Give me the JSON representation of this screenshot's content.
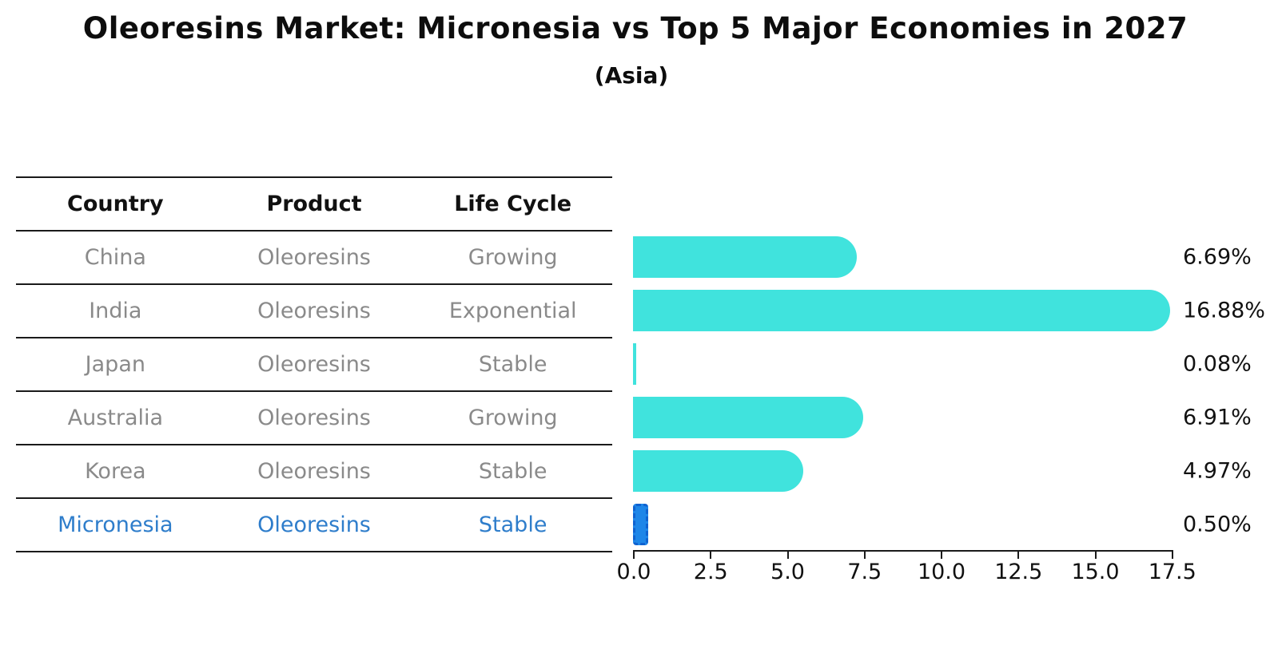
{
  "title": "Oleoresins Market: Micronesia vs Top 5 Major Economies in 2027",
  "subtitle": "(Asia)",
  "table": {
    "headers": [
      "Country",
      "Product",
      "Life Cycle"
    ],
    "rows": [
      {
        "country": "China",
        "product": "Oleoresins",
        "life_cycle": "Growing",
        "highlight": false
      },
      {
        "country": "India",
        "product": "Oleoresins",
        "life_cycle": "Exponential",
        "highlight": false
      },
      {
        "country": "Japan",
        "product": "Oleoresins",
        "life_cycle": "Stable",
        "highlight": false
      },
      {
        "country": "Australia",
        "product": "Oleoresins",
        "life_cycle": "Growing",
        "highlight": false
      },
      {
        "country": "Korea",
        "product": "Oleoresins",
        "life_cycle": "Stable",
        "highlight": false
      },
      {
        "country": "Micronesia",
        "product": "Oleoresins",
        "life_cycle": "Stable",
        "highlight": true
      }
    ]
  },
  "chart_data": {
    "type": "bar",
    "orientation": "horizontal",
    "title": "Oleoresins Market: Micronesia vs Top 5 Major Economies in 2027 (Asia)",
    "categories": [
      "China",
      "India",
      "Japan",
      "Australia",
      "Korea",
      "Micronesia"
    ],
    "values": [
      6.69,
      16.88,
      0.08,
      6.91,
      4.97,
      0.5
    ],
    "value_labels": [
      "6.69%",
      "16.88%",
      "0.08%",
      "6.91%",
      "4.97%",
      "0.50%"
    ],
    "xlim": [
      0,
      17.5
    ],
    "x_ticks": [
      "0.0",
      "2.5",
      "5.0",
      "7.5",
      "10.0",
      "12.5",
      "15.0",
      "17.5"
    ],
    "grid": false,
    "legend": false,
    "highlight_index": 5
  },
  "colors": {
    "bar": "#40e3dd",
    "highlight_bar": "#1e86e8",
    "highlight_border": "#0f62d0",
    "highlight_text": "#2e7dcb",
    "axis": "#1a1a1a",
    "muted_text": "#8a8a8a"
  }
}
